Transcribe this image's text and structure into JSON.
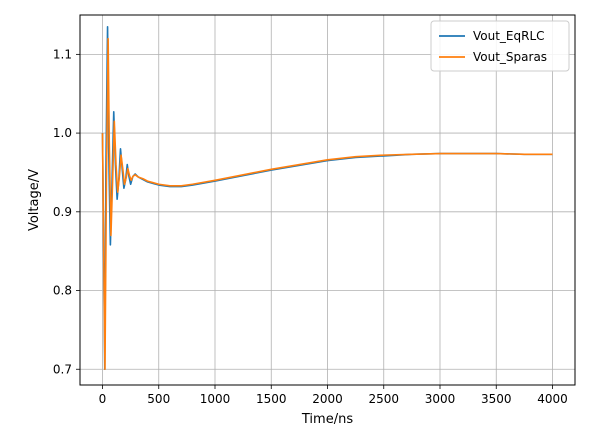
{
  "chart_data": {
    "type": "line",
    "title": "",
    "xlabel": "Time/ns",
    "ylabel": "Voltage/V",
    "xlim": [
      -200,
      4200
    ],
    "ylim": [
      0.68,
      1.15
    ],
    "x_ticks": [
      0,
      500,
      1000,
      1500,
      2000,
      2500,
      3000,
      3500,
      4000
    ],
    "y_ticks": [
      0.7,
      0.8,
      0.9,
      1.0,
      1.1
    ],
    "x_tick_labels": [
      "0",
      "500",
      "1000",
      "1500",
      "2000",
      "2500",
      "3000",
      "3500",
      "4000"
    ],
    "y_tick_labels": [
      "0.7",
      "0.8",
      "0.9",
      "1.0",
      "1.1"
    ],
    "grid": true,
    "legend_position": "upper-right",
    "series": [
      {
        "name": "Vout_EqRLC",
        "color": "#1f77b4",
        "x": [
          0,
          10,
          20,
          30,
          45,
          55,
          70,
          85,
          100,
          115,
          130,
          145,
          160,
          175,
          190,
          205,
          220,
          235,
          250,
          270,
          290,
          320,
          360,
          400,
          450,
          500,
          600,
          700,
          800,
          1000,
          1250,
          1500,
          1750,
          2000,
          2250,
          2500,
          2750,
          3000,
          3250,
          3500,
          3750,
          4000
        ],
        "y": [
          1.0,
          0.85,
          0.7,
          0.95,
          1.135,
          0.98,
          0.858,
          0.94,
          1.027,
          0.96,
          0.916,
          0.94,
          0.98,
          0.955,
          0.93,
          0.94,
          0.96,
          0.945,
          0.935,
          0.945,
          0.948,
          0.944,
          0.941,
          0.938,
          0.936,
          0.934,
          0.932,
          0.932,
          0.934,
          0.939,
          0.946,
          0.953,
          0.959,
          0.965,
          0.969,
          0.971,
          0.973,
          0.974,
          0.974,
          0.974,
          0.973,
          0.973
        ]
      },
      {
        "name": "Vout_Sparas",
        "color": "#ff7f0e",
        "x": [
          0,
          10,
          22,
          35,
          50,
          60,
          75,
          90,
          105,
          120,
          135,
          150,
          165,
          180,
          195,
          210,
          225,
          240,
          255,
          270,
          290,
          320,
          360,
          400,
          450,
          500,
          600,
          700,
          800,
          1000,
          1250,
          1500,
          1750,
          2000,
          2250,
          2500,
          2750,
          3000,
          3250,
          3500,
          3750,
          4000
        ],
        "y": [
          1.0,
          0.86,
          0.7,
          0.94,
          1.12,
          0.99,
          0.87,
          0.94,
          1.015,
          0.96,
          0.925,
          0.945,
          0.972,
          0.955,
          0.935,
          0.943,
          0.955,
          0.946,
          0.94,
          0.945,
          0.947,
          0.944,
          0.942,
          0.939,
          0.937,
          0.935,
          0.933,
          0.933,
          0.935,
          0.94,
          0.947,
          0.954,
          0.96,
          0.966,
          0.97,
          0.972,
          0.973,
          0.974,
          0.974,
          0.974,
          0.973,
          0.973
        ]
      }
    ]
  }
}
